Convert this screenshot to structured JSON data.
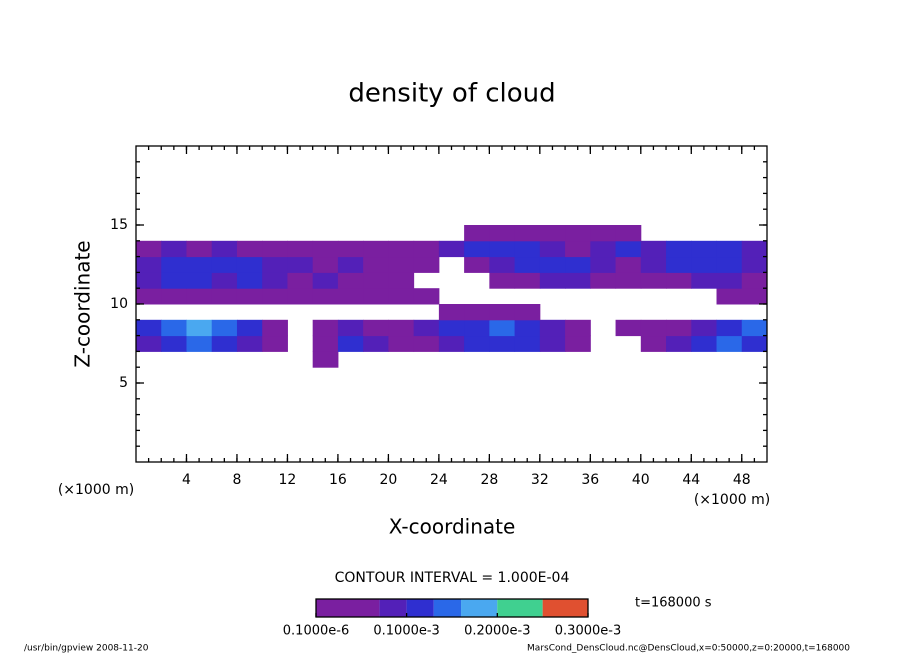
{
  "chart_data": {
    "type": "contour",
    "title": "density of cloud",
    "xlabel": "X-coordinate",
    "ylabel": "Z-coordinate",
    "xunit": "(×1000 m)",
    "yunit": "(×1000 m)",
    "contour_interval": "CONTOUR INTERVAL = 1.000E-04",
    "time_label": "t=168000 s",
    "footer_left": "/usr/bin/gpview  2008-11-20",
    "footer_right": "MarsCond_DensCloud.nc@DensCloud,x=0:50000,z=0:20000,t=168000",
    "xlim": [
      0,
      50
    ],
    "ylim": [
      0,
      20
    ],
    "xticks": [
      4,
      8,
      12,
      16,
      20,
      24,
      28,
      32,
      36,
      40,
      44,
      48
    ],
    "yticks": [
      5,
      10,
      15
    ],
    "x": [
      1,
      3,
      5,
      7,
      9,
      11,
      13,
      15,
      17,
      19,
      21,
      23,
      25,
      27,
      29,
      31,
      33,
      35,
      37,
      39,
      41,
      43,
      45,
      47,
      49
    ],
    "z": [
      6.5,
      7.5,
      8.5,
      9.5,
      10.5,
      11.5,
      12.5,
      13.5,
      14.5,
      15.5
    ],
    "values": [
      [
        null,
        null,
        null,
        null,
        null,
        null,
        null,
        5e-05,
        null,
        null,
        null,
        null,
        null,
        null,
        null,
        null,
        null,
        null,
        null,
        null,
        null,
        null,
        null,
        null,
        null
      ],
      [
        8e-05,
        0.00012,
        0.00015,
        0.00012,
        8e-05,
        5e-05,
        null,
        6e-05,
        0.0001,
        8e-05,
        5e-05,
        6e-05,
        8e-05,
        0.0001,
        0.00012,
        0.0001,
        8e-05,
        5e-05,
        null,
        null,
        5e-05,
        8e-05,
        0.0001,
        0.00015,
        0.00012
      ],
      [
        0.0001,
        0.00015,
        0.00018,
        0.00015,
        0.0001,
        6e-05,
        null,
        6e-05,
        8e-05,
        6e-05,
        5e-05,
        8e-05,
        0.0001,
        0.00012,
        0.00015,
        0.00012,
        8e-05,
        5e-05,
        null,
        5e-05,
        6e-05,
        6e-05,
        8e-05,
        0.00012,
        0.00015
      ],
      [
        null,
        null,
        null,
        null,
        null,
        null,
        null,
        null,
        null,
        null,
        null,
        null,
        5e-05,
        5e-05,
        5e-05,
        5e-05,
        null,
        null,
        null,
        null,
        null,
        null,
        null,
        null,
        null
      ],
      [
        5e-05,
        5e-05,
        5e-05,
        5e-05,
        5e-05,
        5e-05,
        5e-05,
        5e-05,
        5e-05,
        5e-05,
        5e-05,
        5e-05,
        null,
        null,
        null,
        null,
        null,
        null,
        null,
        null,
        null,
        null,
        null,
        5e-05,
        5e-05
      ],
      [
        8e-05,
        0.0001,
        0.0001,
        8e-05,
        0.0001,
        8e-05,
        6e-05,
        8e-05,
        6e-05,
        5e-05,
        6e-05,
        null,
        null,
        null,
        5e-05,
        6e-05,
        8e-05,
        8e-05,
        6e-05,
        5e-05,
        5e-05,
        6e-05,
        8e-05,
        8e-05,
        6e-05
      ],
      [
        8e-05,
        0.0001,
        0.00012,
        0.0001,
        0.0001,
        8e-05,
        8e-05,
        6e-05,
        8e-05,
        6e-05,
        5e-05,
        5e-05,
        null,
        6e-05,
        8e-05,
        0.0001,
        0.00012,
        0.0001,
        8e-05,
        6e-05,
        8e-05,
        0.0001,
        0.00012,
        0.0001,
        8e-05
      ],
      [
        6e-05,
        8e-05,
        6e-05,
        8e-05,
        6e-05,
        6e-05,
        5e-05,
        6e-05,
        5e-05,
        5e-05,
        6e-05,
        6e-05,
        8e-05,
        0.0001,
        0.00012,
        0.0001,
        8e-05,
        6e-05,
        8e-05,
        0.0001,
        8e-05,
        0.0001,
        0.00012,
        0.0001,
        8e-05
      ],
      [
        null,
        null,
        null,
        null,
        null,
        null,
        null,
        null,
        null,
        null,
        null,
        null,
        null,
        5e-05,
        5e-05,
        5e-05,
        5e-05,
        5e-05,
        5e-05,
        5e-05,
        null,
        null,
        null,
        null,
        null
      ],
      [
        null,
        null,
        null,
        null,
        null,
        null,
        null,
        null,
        null,
        null,
        null,
        null,
        null,
        null,
        null,
        null,
        null,
        null,
        null,
        null,
        null,
        null,
        null,
        null,
        null
      ]
    ],
    "levels": [
      1e-07,
      7e-05,
      0.0001,
      0.00013,
      0.00016,
      0.0002,
      0.00025
    ],
    "colors": [
      "#7a1fa0",
      "#5320b8",
      "#2f2fd0",
      "#2a68e8",
      "#4aa8f0",
      "#40d090",
      "#e05030"
    ],
    "cbarlim": [
      1e-07,
      0.0003
    ],
    "cbarticks": [
      {
        "value": 1e-07,
        "label": "0.1000e-6"
      },
      {
        "value": 0.0001,
        "label": "0.1000e-3"
      },
      {
        "value": 0.0002,
        "label": "0.2000e-3"
      },
      {
        "value": 0.0003,
        "label": "0.3000e-3"
      }
    ]
  }
}
